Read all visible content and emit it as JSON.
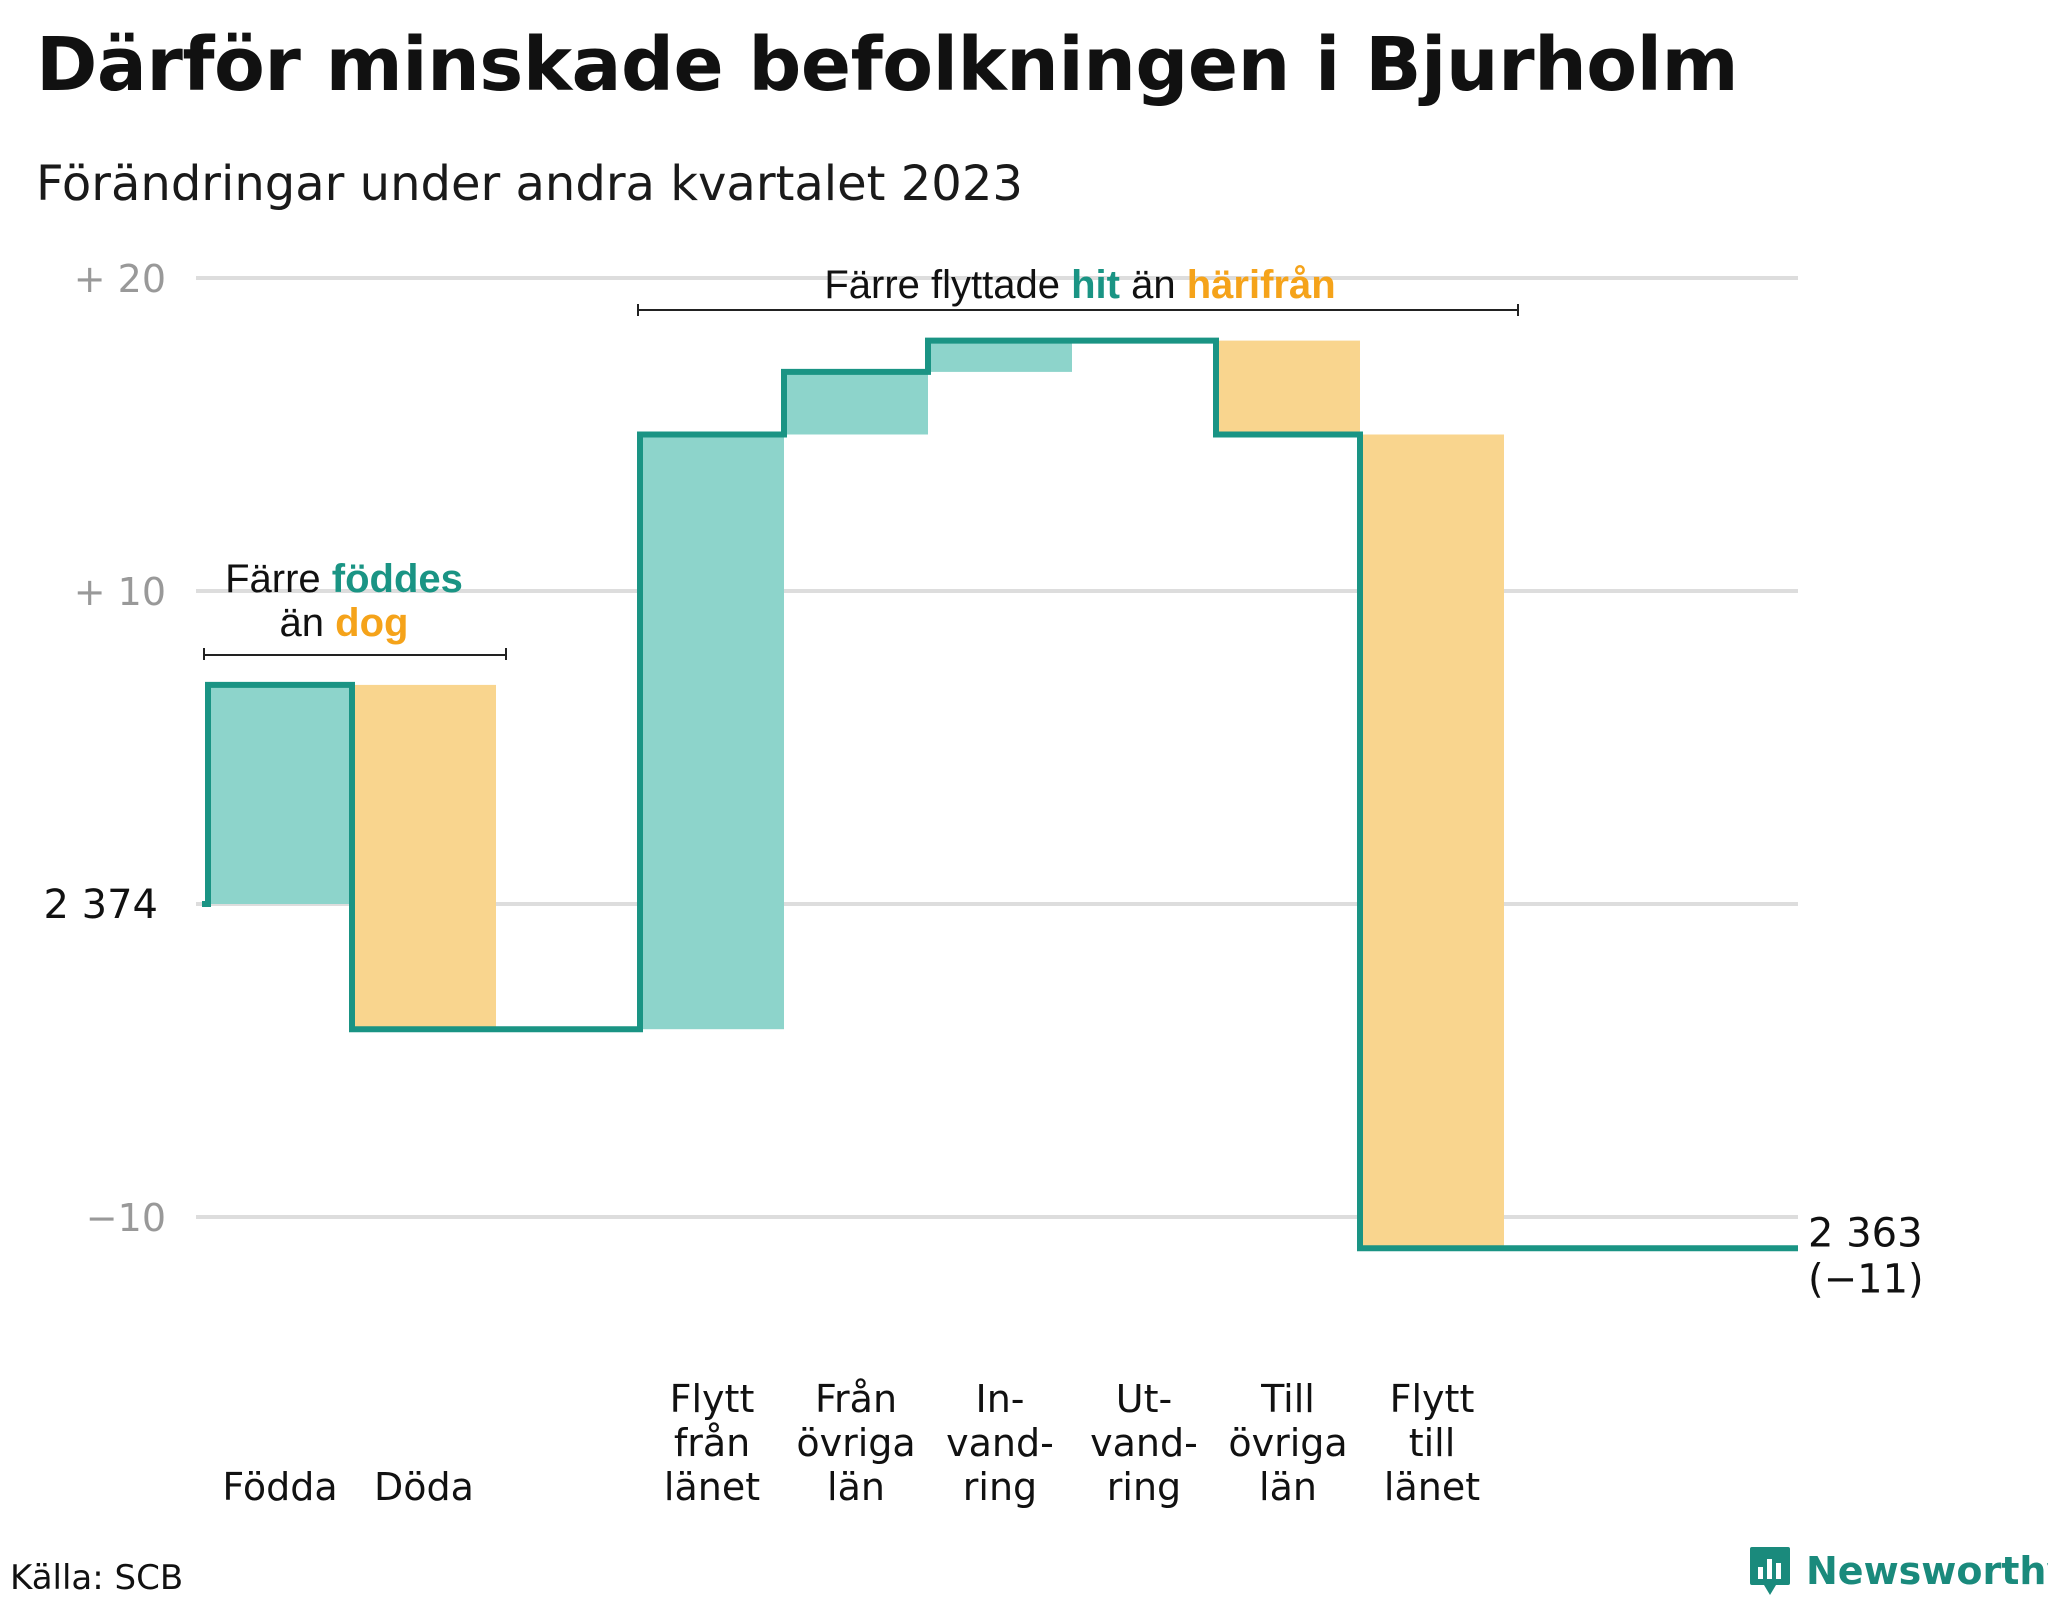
{
  "title": "Därför minskade befolkningen i Bjurholm",
  "subtitle": "Förändringar under andra kvartalet 2023",
  "source": "Källa: SCB",
  "brand": "Newsworthy",
  "colors": {
    "teal": "#1a9484",
    "teal_light": "#8dd4cb",
    "orange_light": "#f9d58e",
    "orange_text": "#f5a31a",
    "grid": "#dddddd",
    "tick": "#999999"
  },
  "chart_data": {
    "type": "waterfall",
    "y_ticks": [
      {
        "value": 20,
        "label": "+  20"
      },
      {
        "value": 10,
        "label": "+  10"
      },
      {
        "value": 0,
        "label": "2  374"
      },
      {
        "value": -10,
        "label": "−10"
      }
    ],
    "ylim": [
      -10,
      20
    ],
    "start_value": 2374,
    "end_label": "2 363",
    "end_change": "(−11)",
    "steps": [
      {
        "label": [
          "Födda"
        ],
        "change": 7,
        "kind": "in"
      },
      {
        "label": [
          "Döda"
        ],
        "change": -11,
        "kind": "out"
      },
      {
        "label": [],
        "change": 0,
        "kind": "gap"
      },
      {
        "label": [
          "Flytt",
          "från",
          "länet"
        ],
        "change": 19,
        "kind": "in"
      },
      {
        "label": [
          "Från",
          "övriga",
          "län"
        ],
        "change": 2,
        "kind": "in"
      },
      {
        "label": [
          "In-",
          "vand-",
          "ring"
        ],
        "change": 1,
        "kind": "in"
      },
      {
        "label": [
          "Ut-",
          "vand-",
          "ring"
        ],
        "change": 0,
        "kind": "out"
      },
      {
        "label": [
          "Till",
          "övriga",
          "län"
        ],
        "change": -3,
        "kind": "out"
      },
      {
        "label": [
          "Flytt",
          "till",
          "länet"
        ],
        "change": -26,
        "kind": "out"
      }
    ],
    "annotations": [
      {
        "parts": [
          {
            "text": "Färre ",
            "style": "plain"
          },
          {
            "text": "föddes",
            "style": "teal"
          }
        ],
        "parts2": [
          {
            "text": "än ",
            "style": "plain"
          },
          {
            "text": "dog",
            "style": "orange"
          }
        ]
      },
      {
        "parts": [
          {
            "text": "Färre flyttade ",
            "style": "plain"
          },
          {
            "text": "hit",
            "style": "teal"
          },
          {
            "text": " än ",
            "style": "plain"
          },
          {
            "text": "härifrån",
            "style": "orange"
          }
        ]
      }
    ]
  }
}
